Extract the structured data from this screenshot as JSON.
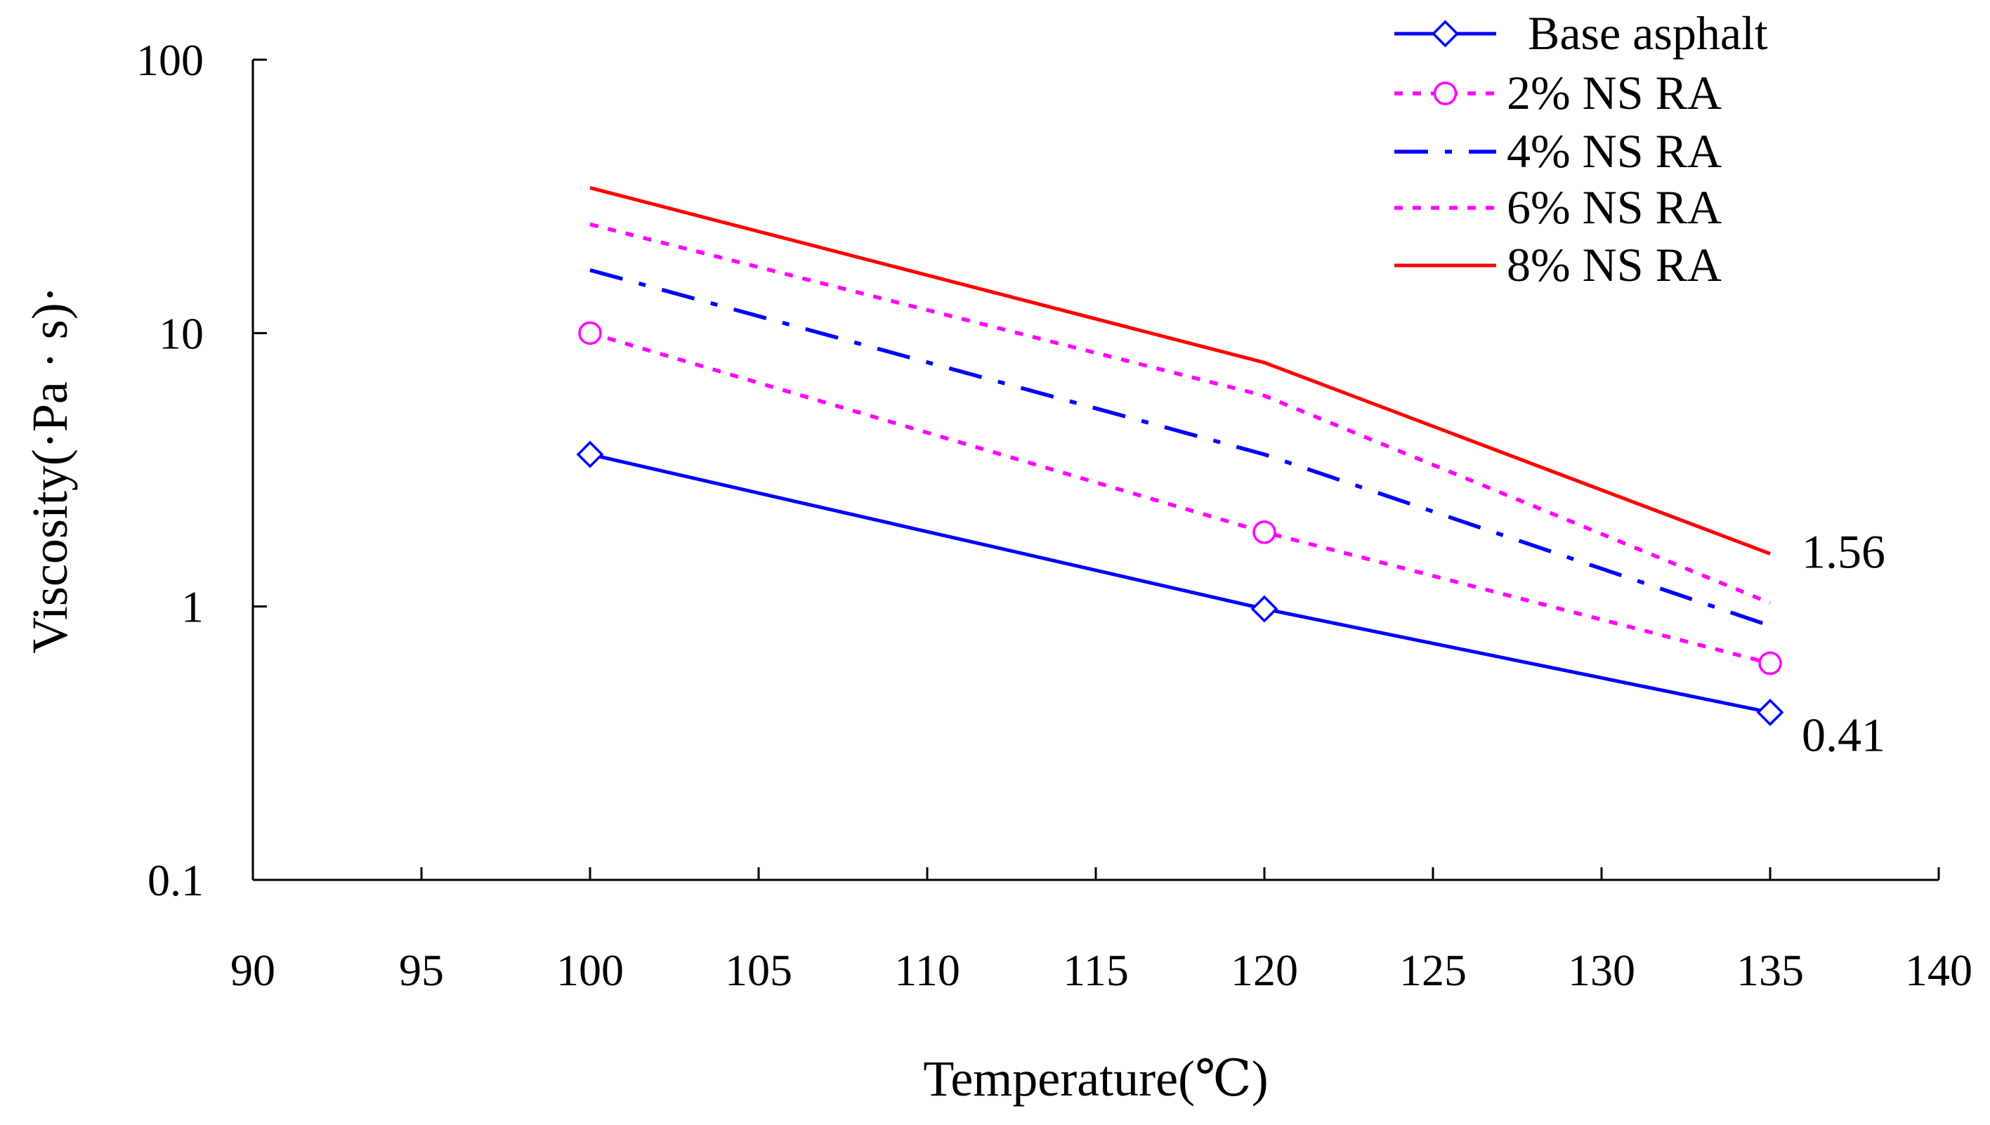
{
  "chart_data": {
    "type": "line",
    "title": "",
    "xlabel": "Temperature(℃)",
    "ylabel": "Viscosity(·Pa · s)·",
    "x_scale": "linear",
    "y_scale": "log",
    "xlim": [
      90,
      140
    ],
    "ylim": [
      0.1,
      100
    ],
    "x_ticks": [
      "90",
      "95",
      "100",
      "105",
      "110",
      "115",
      "120",
      "125",
      "130",
      "135",
      "140"
    ],
    "y_ticks": [
      "0.1",
      "1",
      "10",
      "100"
    ],
    "legend_position": "top-right",
    "x": [
      100,
      120,
      135
    ],
    "series": [
      {
        "name": "Base asphalt",
        "values": [
          3.6,
          0.98,
          0.41
        ],
        "color": "#0000ff",
        "dash": "solid",
        "marker": "diamond"
      },
      {
        "name": "2% NS RA",
        "values": [
          10.0,
          1.87,
          0.62
        ],
        "color": "#ff00ff",
        "dash": "dotted",
        "marker": "circle"
      },
      {
        "name": "4% NS RA",
        "values": [
          17.0,
          3.6,
          0.85
        ],
        "color": "#0000ff",
        "dash": "dashdot",
        "marker": "none"
      },
      {
        "name": "6% NS RA",
        "values": [
          25.0,
          5.9,
          1.03
        ],
        "color": "#ff00ff",
        "dash": "dotted",
        "marker": "none"
      },
      {
        "name": "8% NS RA",
        "values": [
          34.0,
          7.8,
          1.56
        ],
        "color": "#ff0000",
        "dash": "solid",
        "marker": "none"
      }
    ],
    "annotations": [
      {
        "text": "1.56",
        "series": "8% NS RA",
        "x": 135,
        "y": 1.56
      },
      {
        "text": "0.41",
        "series": "Base asphalt",
        "x": 135,
        "y": 0.41
      }
    ]
  }
}
